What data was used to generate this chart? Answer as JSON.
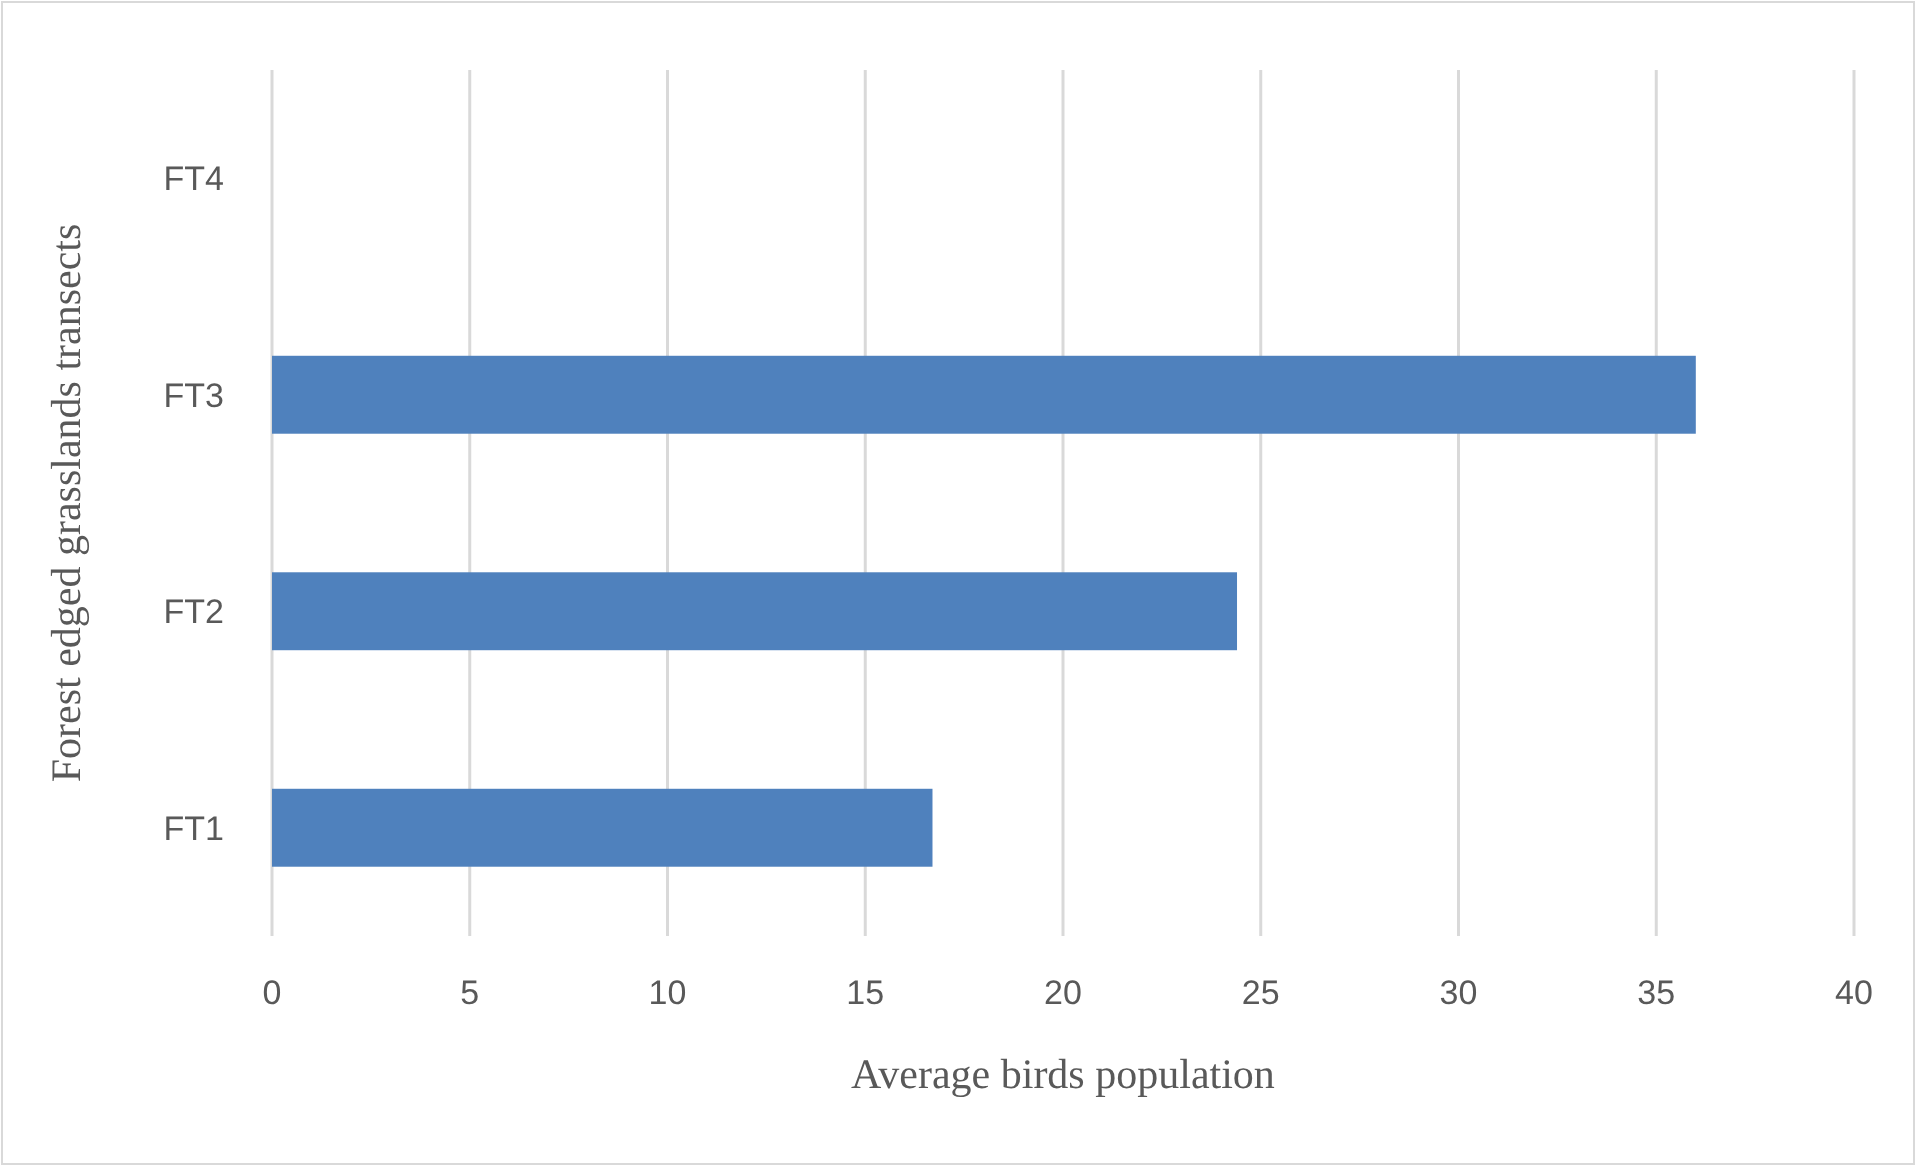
{
  "chart_data": {
    "type": "bar",
    "orientation": "horizontal",
    "categories": [
      "FT4",
      "FT3",
      "FT2",
      "FT1"
    ],
    "values": [
      0,
      36,
      24.4,
      16.7
    ],
    "color": "#4f81bd",
    "xlim": [
      0,
      40
    ],
    "xticks": [
      0,
      5,
      10,
      15,
      20,
      25,
      30,
      35,
      40
    ],
    "grid": "x",
    "xlabel": "Average birds population",
    "ylabel": "Forest edged grasslands transects"
  }
}
